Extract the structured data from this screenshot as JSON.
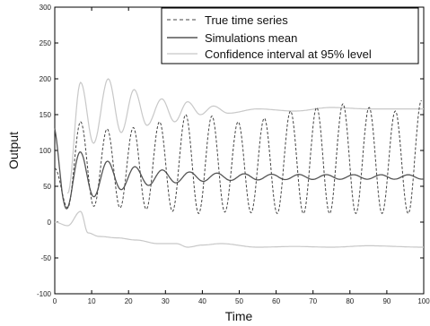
{
  "chart_data": {
    "type": "line",
    "xlabel": "Time",
    "ylabel": "Output",
    "xlim": [
      0,
      100
    ],
    "ylim": [
      -100,
      300
    ],
    "xticks": [
      0,
      10,
      20,
      30,
      40,
      50,
      60,
      70,
      80,
      90,
      100
    ],
    "yticks": [
      -100,
      -50,
      0,
      50,
      100,
      150,
      200,
      250,
      300
    ],
    "grid": false,
    "legend_position": "top-right",
    "series": [
      {
        "name": "True time series",
        "color": "#444444",
        "style": "dashed",
        "period": 7.1,
        "peaks": [
          {
            "x": 0,
            "y": 75
          },
          {
            "x": 7,
            "y": 140
          },
          {
            "x": 14.2,
            "y": 130
          },
          {
            "x": 21.3,
            "y": 132
          },
          {
            "x": 28.4,
            "y": 140
          },
          {
            "x": 35.5,
            "y": 150
          },
          {
            "x": 42.6,
            "y": 148
          },
          {
            "x": 49.7,
            "y": 140
          },
          {
            "x": 56.8,
            "y": 145
          },
          {
            "x": 63.9,
            "y": 155
          },
          {
            "x": 71,
            "y": 160
          },
          {
            "x": 78.1,
            "y": 165
          },
          {
            "x": 85.2,
            "y": 160
          },
          {
            "x": 92.3,
            "y": 155
          },
          {
            "x": 99.4,
            "y": 170
          }
        ],
        "troughs": [
          {
            "x": 3.5,
            "y": 20
          },
          {
            "x": 10.6,
            "y": 22
          },
          {
            "x": 17.7,
            "y": 20
          },
          {
            "x": 24.8,
            "y": 18
          },
          {
            "x": 31.9,
            "y": 15
          },
          {
            "x": 39,
            "y": 12
          },
          {
            "x": 46.1,
            "y": 14
          },
          {
            "x": 53.2,
            "y": 13
          },
          {
            "x": 60.3,
            "y": 12
          },
          {
            "x": 67.4,
            "y": 12
          },
          {
            "x": 74.5,
            "y": 12
          },
          {
            "x": 81.6,
            "y": 12
          },
          {
            "x": 88.7,
            "y": 12
          },
          {
            "x": 95.8,
            "y": 12
          }
        ]
      },
      {
        "name": "Simulations mean",
        "color": "#555555",
        "style": "solid",
        "period": 7.4,
        "amplitude_start": 55,
        "amplitude_end": 3,
        "decay": 0.07,
        "baseline": 63
      },
      {
        "name": "Confidence interval at 95% level",
        "color": "#c8c8c8",
        "style": "solid",
        "upper_peaks": [
          {
            "x": 3.5,
            "y": 40
          },
          {
            "x": 7,
            "y": 195
          },
          {
            "x": 10.5,
            "y": 110
          },
          {
            "x": 14.5,
            "y": 200
          },
          {
            "x": 18,
            "y": 125
          },
          {
            "x": 21.5,
            "y": 185
          },
          {
            "x": 25,
            "y": 135
          },
          {
            "x": 29,
            "y": 172
          },
          {
            "x": 32.5,
            "y": 140
          },
          {
            "x": 36,
            "y": 168
          },
          {
            "x": 39.5,
            "y": 150
          },
          {
            "x": 43,
            "y": 162
          },
          {
            "x": 47,
            "y": 152
          },
          {
            "x": 55,
            "y": 158
          },
          {
            "x": 65,
            "y": 155
          },
          {
            "x": 75,
            "y": 160
          },
          {
            "x": 85,
            "y": 158
          },
          {
            "x": 100,
            "y": 158
          }
        ],
        "lower": [
          {
            "x": 0,
            "y": 0
          },
          {
            "x": 3.5,
            "y": -5
          },
          {
            "x": 7,
            "y": 15
          },
          {
            "x": 9,
            "y": -15
          },
          {
            "x": 12,
            "y": -20
          },
          {
            "x": 17,
            "y": -22
          },
          {
            "x": 22,
            "y": -25
          },
          {
            "x": 28,
            "y": -30
          },
          {
            "x": 33,
            "y": -30
          },
          {
            "x": 36,
            "y": -35
          },
          {
            "x": 40,
            "y": -32
          },
          {
            "x": 45,
            "y": -30
          },
          {
            "x": 55,
            "y": -35
          },
          {
            "x": 65,
            "y": -34
          },
          {
            "x": 75,
            "y": -35
          },
          {
            "x": 85,
            "y": -33
          },
          {
            "x": 100,
            "y": -35
          }
        ]
      }
    ]
  }
}
